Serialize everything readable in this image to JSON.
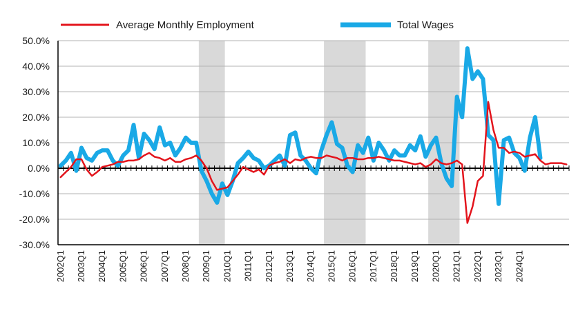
{
  "chart_data": {
    "type": "line",
    "title": "",
    "xlabel": "",
    "ylabel": "",
    "ylim": [
      -30,
      50
    ],
    "yticks": [
      "50.0%",
      "40.0%",
      "30.0%",
      "20.0%",
      "10.0%",
      "0.0%",
      "-10.0%",
      "-20.0%",
      "-30.0%"
    ],
    "x_tick_labels": [
      "2002Q1",
      "2003Q1",
      "2004Q1",
      "2005Q1",
      "2006Q1",
      "2007Q1",
      "2008Q1",
      "2009Q1",
      "2010Q1",
      "2011Q1",
      "2012Q1",
      "2013Q1",
      "2014Q1",
      "2015Q1",
      "2016Q1",
      "2017Q1",
      "2018Q1",
      "2019Q1",
      "2020Q1",
      "2021Q1",
      "2022Q1",
      "2023Q1",
      "2024Q1"
    ],
    "x_start": "2002Q1",
    "grid": "horizontal",
    "legend_position": "top",
    "recession_shading": [
      {
        "start": "2008Q4",
        "end": "2009Q4"
      },
      {
        "start": "2014Q4",
        "end": "2016Q3"
      },
      {
        "start": "2019Q4",
        "end": "2021Q1"
      }
    ],
    "series": [
      {
        "name": "Average Monthly Employment",
        "color": "#e3141c",
        "values": [
          -3.5,
          -1.5,
          0.5,
          3.5,
          3.5,
          -0.5,
          -3,
          -1.5,
          0.5,
          1,
          1.5,
          2.5,
          2.5,
          3,
          3,
          3.5,
          5,
          6,
          4.5,
          4,
          3,
          4,
          2.5,
          2.5,
          3.5,
          4,
          5,
          3,
          0,
          -5,
          -8.5,
          -8,
          -7.5,
          -5,
          -2.5,
          0.5,
          -0.5,
          -1.5,
          -0.5,
          -2.5,
          1,
          2,
          2.5,
          3.5,
          2,
          3.5,
          3,
          4,
          4.5,
          4,
          4,
          5,
          4.5,
          4,
          3,
          4,
          4,
          3.5,
          3.5,
          4,
          4,
          4.5,
          4,
          3.5,
          3,
          3,
          2.5,
          2,
          1.5,
          2,
          0.5,
          1.5,
          3.5,
          2,
          1.5,
          2,
          3,
          1.5,
          -21.5,
          -15,
          -5,
          -3,
          26,
          15,
          8,
          8,
          6,
          6.5,
          6,
          4.5,
          5,
          5.5,
          3,
          1.5,
          2,
          2,
          2,
          1.5
        ]
      },
      {
        "name": "Total Wages",
        "color": "#1aa9e6",
        "values": [
          1,
          3,
          6,
          -1,
          8,
          4,
          3,
          6,
          7,
          7,
          3,
          1,
          5,
          7,
          17,
          4,
          13.5,
          11,
          7.5,
          16,
          9,
          10,
          5,
          8,
          12,
          10,
          10,
          -1,
          -5,
          -10,
          -13.5,
          -6,
          -10.5,
          -5,
          2,
          4,
          6.5,
          4,
          3,
          0,
          1,
          3,
          5,
          1,
          13,
          14,
          5,
          3,
          0,
          -2,
          7,
          13,
          18,
          9.5,
          8,
          1,
          -1.5,
          9,
          6,
          12,
          3,
          10,
          7,
          3,
          7,
          5,
          5,
          9,
          7,
          12.5,
          4.5,
          9,
          12,
          2,
          -4,
          -7,
          28,
          20,
          47,
          35,
          38,
          35,
          13,
          11,
          -14,
          11,
          12,
          6,
          4,
          -1,
          12,
          20,
          4
        ]
      }
    ]
  }
}
